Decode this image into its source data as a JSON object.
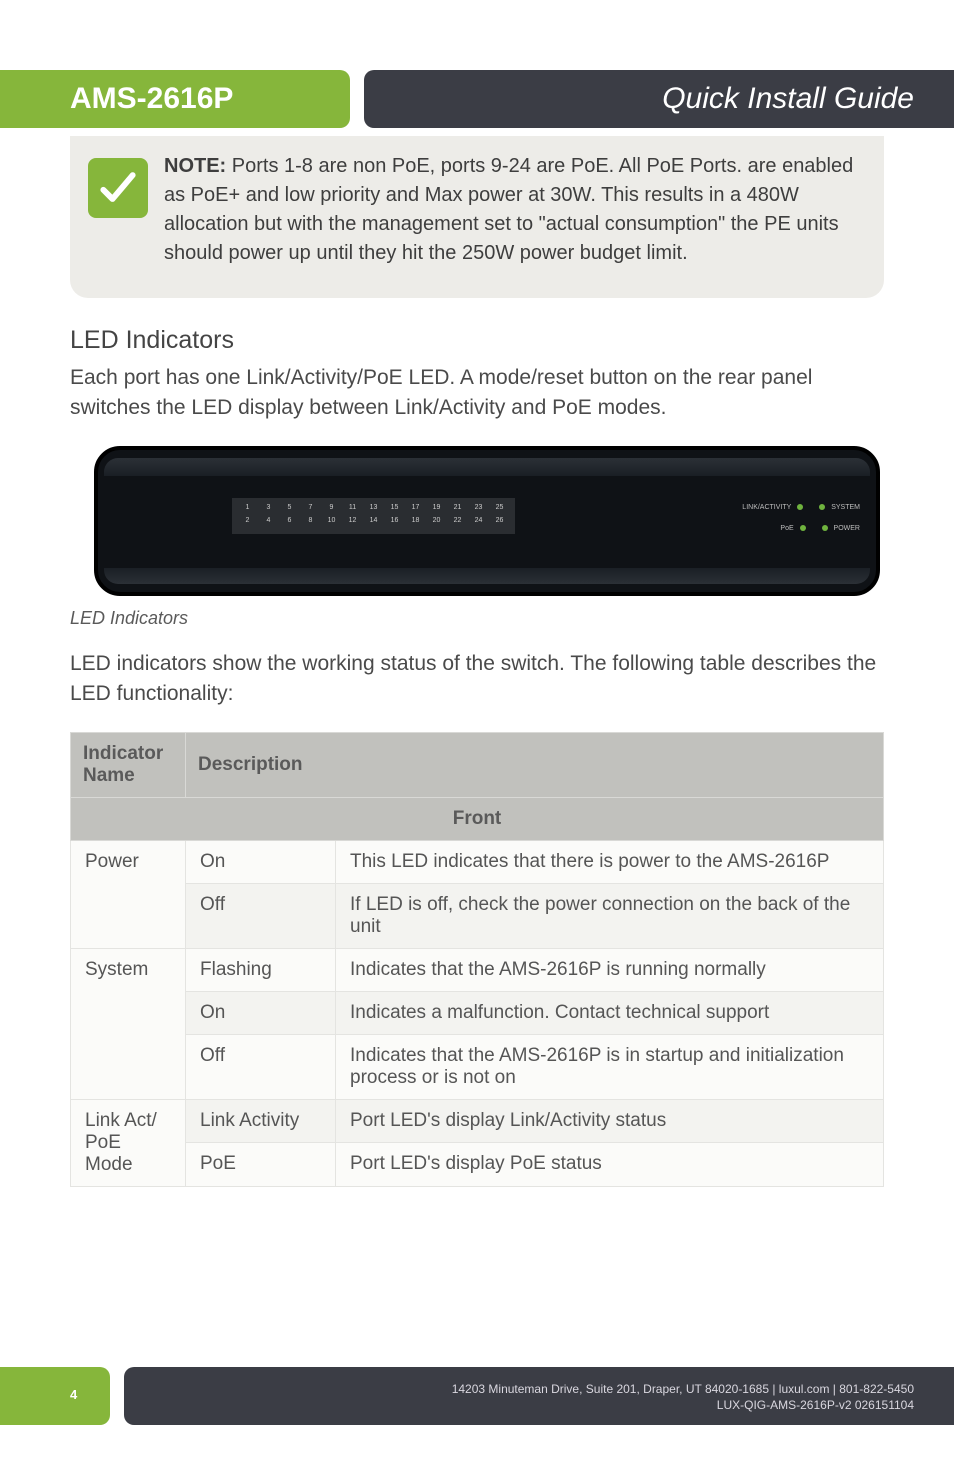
{
  "header": {
    "model": "AMS-2616P",
    "guide_title": "Quick Install Guide"
  },
  "note": {
    "label": "NOTE:",
    "text": "Ports 1-8 are non PoE, ports 9-24 are PoE. All PoE Ports. are enabled as PoE+ and low priority and Max power at 30W.   This results in a 480W allocation but with the management set to \"actual consumption\" the PE units should power up until they hit the 250W power budget limit."
  },
  "section": {
    "heading": "LED Indicators",
    "intro": "Each port has one Link/Activity/PoE LED. A mode/reset button on the rear panel switches the LED display between Link/Activity and PoE modes.",
    "caption": "LED Indicators",
    "desc": "LED indicators show the working status of the switch. The following table describes the LED functionality:"
  },
  "device": {
    "top_row": [
      "1",
      "3",
      "5",
      "7",
      "9",
      "11",
      "13",
      "15",
      "17",
      "19",
      "21",
      "23",
      "25"
    ],
    "bottom_row": [
      "2",
      "4",
      "6",
      "8",
      "10",
      "12",
      "14",
      "16",
      "18",
      "20",
      "22",
      "24",
      "26"
    ],
    "right_labels": {
      "link_activity": "LINK/ACTIVITY",
      "system": "SYSTEM",
      "poe": "PoE",
      "power": "POWER"
    }
  },
  "table": {
    "headers": {
      "name": "Indicator Name",
      "desc": "Description",
      "front": "Front"
    },
    "rows": [
      {
        "name": "Power",
        "state": "On",
        "text": "This LED indicates that there is power to the AMS-2616P",
        "rowspan": 2
      },
      {
        "state": "Off",
        "text": "If LED is off, check the power connection on the back of the unit"
      },
      {
        "name": "System",
        "state": "Flashing",
        "text": "Indicates that the AMS-2616P is running normally",
        "rowspan": 3
      },
      {
        "state": "On",
        "text": "Indicates a malfunction. Contact technical support"
      },
      {
        "state": "Off",
        "text": "Indicates that the AMS-2616P is in startup and initialization process or is not on"
      },
      {
        "name": "Link Act/ PoE Mode",
        "state": "Link Activity",
        "text": "Port LED's display Link/Activity status",
        "rowspan": 2
      },
      {
        "state": "PoE",
        "text": "Port LED's display PoE status"
      }
    ]
  },
  "footer": {
    "page": "4",
    "line1": "14203 Minuteman Drive, Suite 201, Draper, UT 84020-1685 | luxul.com | 801-822-5450",
    "line2": "LUX-QIG-AMS-2616P-v2 026151104"
  },
  "colors": {
    "green": "#86b63b",
    "dark": "#3b3d45",
    "note_bg": "#edece8",
    "table_header_bg": "#c1c1bd"
  }
}
